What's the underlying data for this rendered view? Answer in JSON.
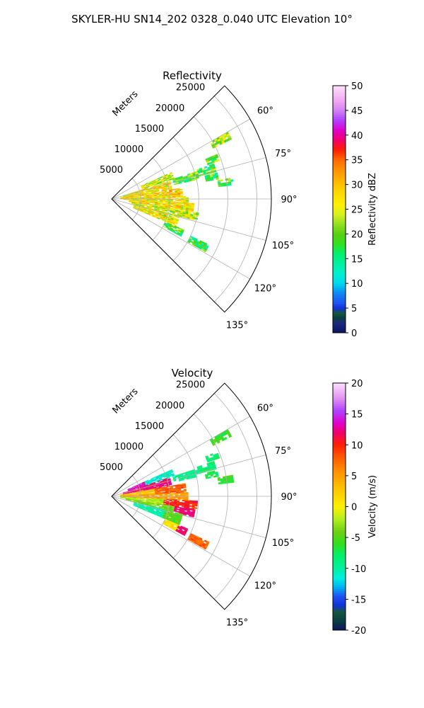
{
  "figure": {
    "suptitle": "SKYLER-HU  SN14_202  0328_0.040 UTC Elevation 10°"
  },
  "chart_data": [
    {
      "type": "heatmap",
      "title": "Reflectivity",
      "radial_label": "Meters",
      "radial_ticks": [
        "5000",
        "10000",
        "15000",
        "20000",
        "25000"
      ],
      "radial_tick_values": [
        5000,
        10000,
        15000,
        20000,
        25000
      ],
      "range_max": 27500,
      "angle_ticks": [
        "60°",
        "75°",
        "90°",
        "105°",
        "120°",
        "135°"
      ],
      "angle_tick_values": [
        60,
        75,
        90,
        105,
        120,
        135
      ],
      "sector": [
        45,
        135
      ],
      "grid": true,
      "colorbar": {
        "label": "Reflectivity dBZ",
        "ticks": [
          "0",
          "5",
          "10",
          "15",
          "20",
          "25",
          "30",
          "35",
          "40",
          "45",
          "50"
        ],
        "range": [
          0,
          50
        ]
      },
      "echo_bands": [
        {
          "az": [
            60,
            63
          ],
          "r": [
            19500,
            23000
          ],
          "value": 22
        },
        {
          "az": [
            67,
            70
          ],
          "r": [
            17500,
            19500
          ],
          "value": 20
        },
        {
          "az": [
            71,
            75
          ],
          "r": [
            15500,
            18500
          ],
          "value": 19
        },
        {
          "az": [
            76,
            79
          ],
          "r": [
            16500,
            18500
          ],
          "value": 18
        },
        {
          "az": [
            80,
            83
          ],
          "r": [
            18500,
            21000
          ],
          "value": 18
        },
        {
          "az": [
            72,
            77
          ],
          "r": [
            11000,
            15500
          ],
          "value": 19
        },
        {
          "az": [
            66,
            72
          ],
          "r": [
            5500,
            11000
          ],
          "value": 24
        },
        {
          "az": [
            73,
            81
          ],
          "r": [
            2000,
            10500
          ],
          "value": 27
        },
        {
          "az": [
            81,
            88
          ],
          "r": [
            1500,
            12000
          ],
          "value": 28
        },
        {
          "az": [
            88,
            93
          ],
          "r": [
            2000,
            13000
          ],
          "value": 26
        },
        {
          "az": [
            93,
            99
          ],
          "r": [
            3000,
            14000
          ],
          "value": 27
        },
        {
          "az": [
            99,
            104
          ],
          "r": [
            3500,
            15000
          ],
          "value": 24
        },
        {
          "az": [
            104,
            113
          ],
          "r": [
            4000,
            12000
          ],
          "value": 26
        },
        {
          "az": [
            113,
            118
          ],
          "r": [
            10000,
            13500
          ],
          "value": 19
        },
        {
          "az": [
            115,
            119
          ],
          "r": [
            15000,
            18500
          ],
          "value": 18
        }
      ]
    },
    {
      "type": "heatmap",
      "title": "Velocity",
      "radial_label": "Meters",
      "radial_ticks": [
        "5000",
        "10000",
        "15000",
        "20000",
        "25000"
      ],
      "radial_tick_values": [
        5000,
        10000,
        15000,
        20000,
        25000
      ],
      "range_max": 27500,
      "angle_ticks": [
        "60°",
        "75°",
        "90°",
        "105°",
        "120°",
        "135°"
      ],
      "angle_tick_values": [
        60,
        75,
        90,
        105,
        120,
        135
      ],
      "sector": [
        45,
        135
      ],
      "grid": true,
      "colorbar": {
        "label": "Velocity (m/s)",
        "ticks": [
          "-20",
          "-15",
          "-10",
          "-5",
          "0",
          "5",
          "10",
          "15",
          "20"
        ],
        "range": [
          -20,
          20
        ]
      },
      "echo_bands": [
        {
          "az": [
            60,
            63
          ],
          "r": [
            19500,
            23000
          ],
          "value": -6
        },
        {
          "az": [
            67,
            70
          ],
          "r": [
            17500,
            19500
          ],
          "value": -8
        },
        {
          "az": [
            71,
            75
          ],
          "r": [
            15500,
            18500
          ],
          "value": -8
        },
        {
          "az": [
            76,
            79
          ],
          "r": [
            16500,
            18500
          ],
          "value": -7
        },
        {
          "az": [
            80,
            83
          ],
          "r": [
            18500,
            21000
          ],
          "value": -6
        },
        {
          "az": [
            72,
            77
          ],
          "r": [
            11000,
            15500
          ],
          "value": -9
        },
        {
          "az": [
            66,
            72
          ],
          "r": [
            6000,
            11000
          ],
          "value": -11
        },
        {
          "az": [
            66,
            72
          ],
          "r": [
            3000,
            6000
          ],
          "value": 14
        },
        {
          "az": [
            72,
            80
          ],
          "r": [
            2000,
            10500
          ],
          "value": 12
        },
        {
          "az": [
            80,
            87
          ],
          "r": [
            1500,
            7500
          ],
          "value": 3
        },
        {
          "az": [
            80,
            87
          ],
          "r": [
            7500,
            12500
          ],
          "value": 8
        },
        {
          "az": [
            87,
            93
          ],
          "r": [
            1500,
            13000
          ],
          "value": 5
        },
        {
          "az": [
            93,
            99
          ],
          "r": [
            1500,
            9000
          ],
          "value": -2
        },
        {
          "az": [
            93,
            99
          ],
          "r": [
            9000,
            14500
          ],
          "value": 10
        },
        {
          "az": [
            99,
            104
          ],
          "r": [
            2500,
            11000
          ],
          "value": -4
        },
        {
          "az": [
            99,
            104
          ],
          "r": [
            11000,
            14500
          ],
          "value": 12
        },
        {
          "az": [
            104,
            113
          ],
          "r": [
            4000,
            9500
          ],
          "value": -10
        },
        {
          "az": [
            104,
            113
          ],
          "r": [
            9500,
            12500
          ],
          "value": -5
        },
        {
          "az": [
            113,
            118
          ],
          "r": [
            10000,
            12500
          ],
          "value": 1
        },
        {
          "az": [
            113,
            118
          ],
          "r": [
            12500,
            14000
          ],
          "value": 12
        },
        {
          "az": [
            115,
            119
          ],
          "r": [
            15000,
            18500
          ],
          "value": 8
        }
      ]
    }
  ]
}
